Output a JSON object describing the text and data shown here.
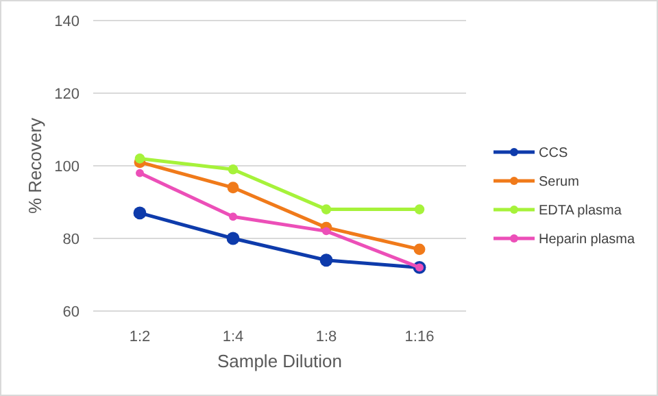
{
  "chart_data": {
    "type": "line",
    "xlabel": "Sample Dilution",
    "ylabel": "% Recovery",
    "categories": [
      "1:2",
      "1:4",
      "1:8",
      "1:16"
    ],
    "series": [
      {
        "name": "CCS",
        "color": "#0e3bab",
        "values": [
          87,
          80,
          74,
          72
        ]
      },
      {
        "name": "Serum",
        "color": "#f07a1a",
        "values": [
          101,
          94,
          83,
          77
        ]
      },
      {
        "name": "EDTA plasma",
        "color": "#a6f23a",
        "values": [
          102,
          99,
          88,
          88
        ]
      },
      {
        "name": "Heparin plasma",
        "color": "#ec4fb8",
        "values": [
          98,
          86,
          82,
          72
        ]
      }
    ],
    "ylim": [
      60,
      140
    ],
    "yticks": [
      60,
      80,
      100,
      120,
      140
    ],
    "grid": "y",
    "legend": "right",
    "marker": "circle",
    "line_style": "solid"
  }
}
